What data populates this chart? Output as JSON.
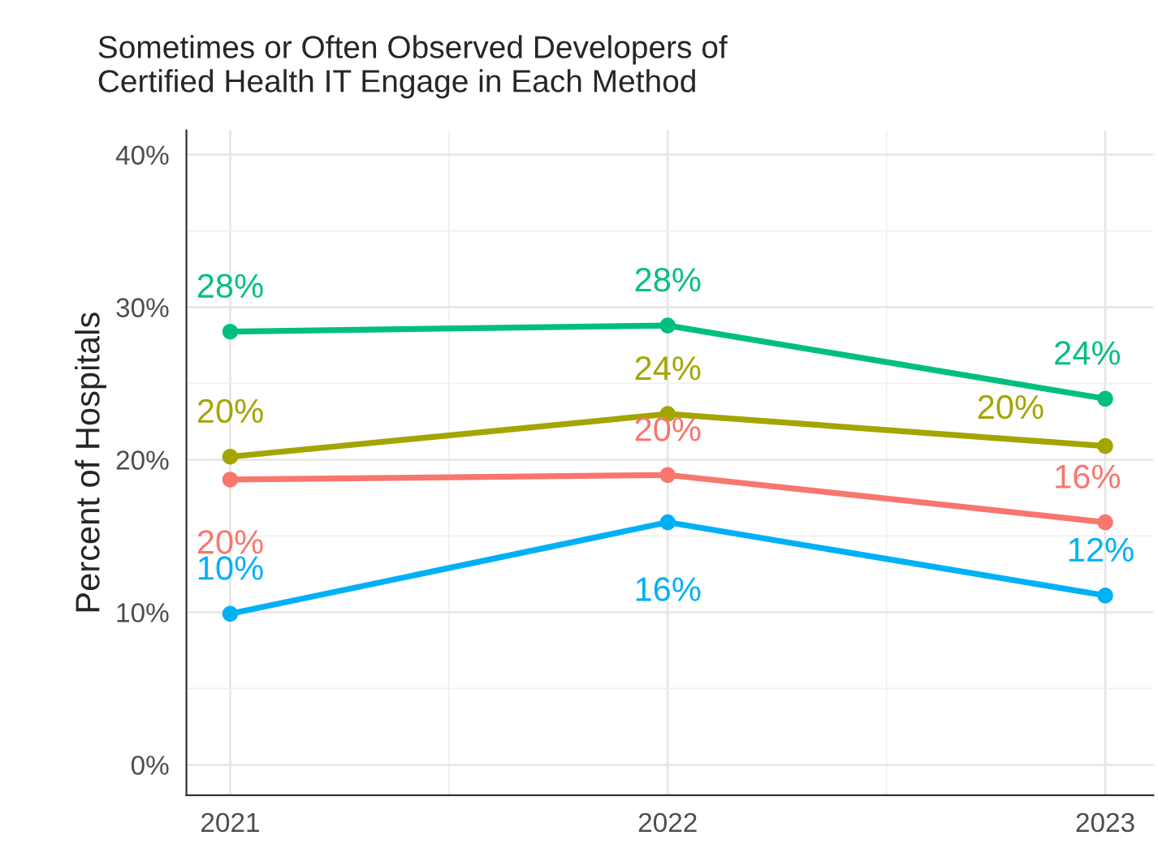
{
  "chart_data": {
    "type": "line",
    "title": "Sometimes or Often Observed Developers of\nCertified Health IT Engage in Each Method",
    "ylabel": "Percent of Hospitals",
    "x": [
      2021,
      2022,
      2023
    ],
    "series": [
      {
        "color": "#00BF7D",
        "values": [
          28.4,
          28.8,
          24.0
        ]
      },
      {
        "color": "#A3A500",
        "values": [
          20.2,
          23.0,
          20.9
        ]
      },
      {
        "color": "#F8766D",
        "values": [
          18.7,
          19.0,
          15.9
        ]
      },
      {
        "color": "#00B0F6",
        "values": [
          9.9,
          15.9,
          11.1
        ]
      }
    ],
    "annotations": [
      {
        "text": "28%",
        "x": 2021,
        "y": 28.4
      },
      {
        "text": "28%",
        "x": 2022,
        "y": 28.8
      },
      {
        "text": "24%",
        "x": 2023,
        "y": 24.0
      },
      {
        "text": "20%",
        "x": 2021,
        "y": 20.2
      },
      {
        "text": "24%",
        "x": 2022,
        "y": 23.0
      },
      {
        "text": "20%",
        "x": 2023,
        "y": 20.9
      },
      {
        "text": "20%",
        "x": 2021,
        "y": 18.7
      },
      {
        "text": "20%",
        "x": 2022,
        "y": 19.0
      },
      {
        "text": "16%",
        "x": 2023,
        "y": 15.9
      },
      {
        "text": "10%",
        "x": 2021,
        "y": 9.9
      },
      {
        "text": "16%",
        "x": 2022,
        "y": 15.9
      },
      {
        "text": "12%",
        "x": 2023,
        "y": 11.1
      }
    ],
    "xlim": [
      2020.9,
      2023.11
    ],
    "xticks": [
      2021,
      2022,
      2023
    ],
    "ylim": [
      -2,
      41.6
    ],
    "yticks": [
      {
        "value": 0,
        "label": "0%"
      },
      {
        "value": 10,
        "label": "10%"
      },
      {
        "value": 20,
        "label": "20%"
      },
      {
        "value": 30,
        "label": "30%"
      },
      {
        "value": 40,
        "label": "40%"
      }
    ],
    "grid": true,
    "marker": "circle",
    "line_style": "solid",
    "legend": false
  }
}
